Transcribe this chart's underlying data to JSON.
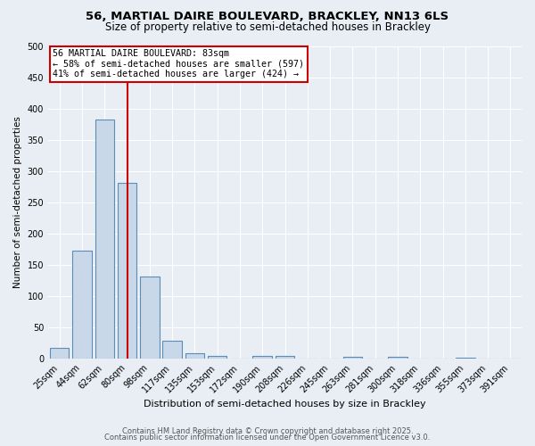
{
  "title1": "56, MARTIAL DAIRE BOULEVARD, BRACKLEY, NN13 6LS",
  "title2": "Size of property relative to semi-detached houses in Brackley",
  "xlabel": "Distribution of semi-detached houses by size in Brackley",
  "ylabel": "Number of semi-detached properties",
  "bins": [
    "25sqm",
    "44sqm",
    "62sqm",
    "80sqm",
    "98sqm",
    "117sqm",
    "135sqm",
    "153sqm",
    "172sqm",
    "190sqm",
    "208sqm",
    "226sqm",
    "245sqm",
    "263sqm",
    "281sqm",
    "300sqm",
    "318sqm",
    "336sqm",
    "355sqm",
    "373sqm",
    "391sqm"
  ],
  "counts": [
    17,
    173,
    383,
    281,
    132,
    29,
    9,
    5,
    0,
    5,
    5,
    0,
    0,
    3,
    0,
    3,
    0,
    0,
    2,
    0,
    0
  ],
  "bar_color": "#c8d8e8",
  "bar_edge_color": "#5b8db8",
  "bg_color": "#e8eef4",
  "grid_color": "#ffffff",
  "vline_color": "#cc0000",
  "vline_pos": 3.0,
  "annotation_title": "56 MARTIAL DAIRE BOULEVARD: 83sqm",
  "annotation_line1": "← 58% of semi-detached houses are smaller (597)",
  "annotation_line2": "41% of semi-detached houses are larger (424) →",
  "annotation_box_color": "#ffffff",
  "annotation_box_edge": "#cc0000",
  "footer1": "Contains HM Land Registry data © Crown copyright and database right 2025.",
  "footer2": "Contains public sector information licensed under the Open Government Licence v3.0.",
  "ylim": [
    0,
    500
  ],
  "yticks": [
    0,
    50,
    100,
    150,
    200,
    250,
    300,
    350,
    400,
    450,
    500
  ],
  "title1_fontsize": 9.5,
  "title2_fontsize": 8.5,
  "ylabel_fontsize": 7.5,
  "xlabel_fontsize": 8,
  "tick_fontsize": 7,
  "footer_fontsize": 6,
  "ann_fontsize": 7.2
}
